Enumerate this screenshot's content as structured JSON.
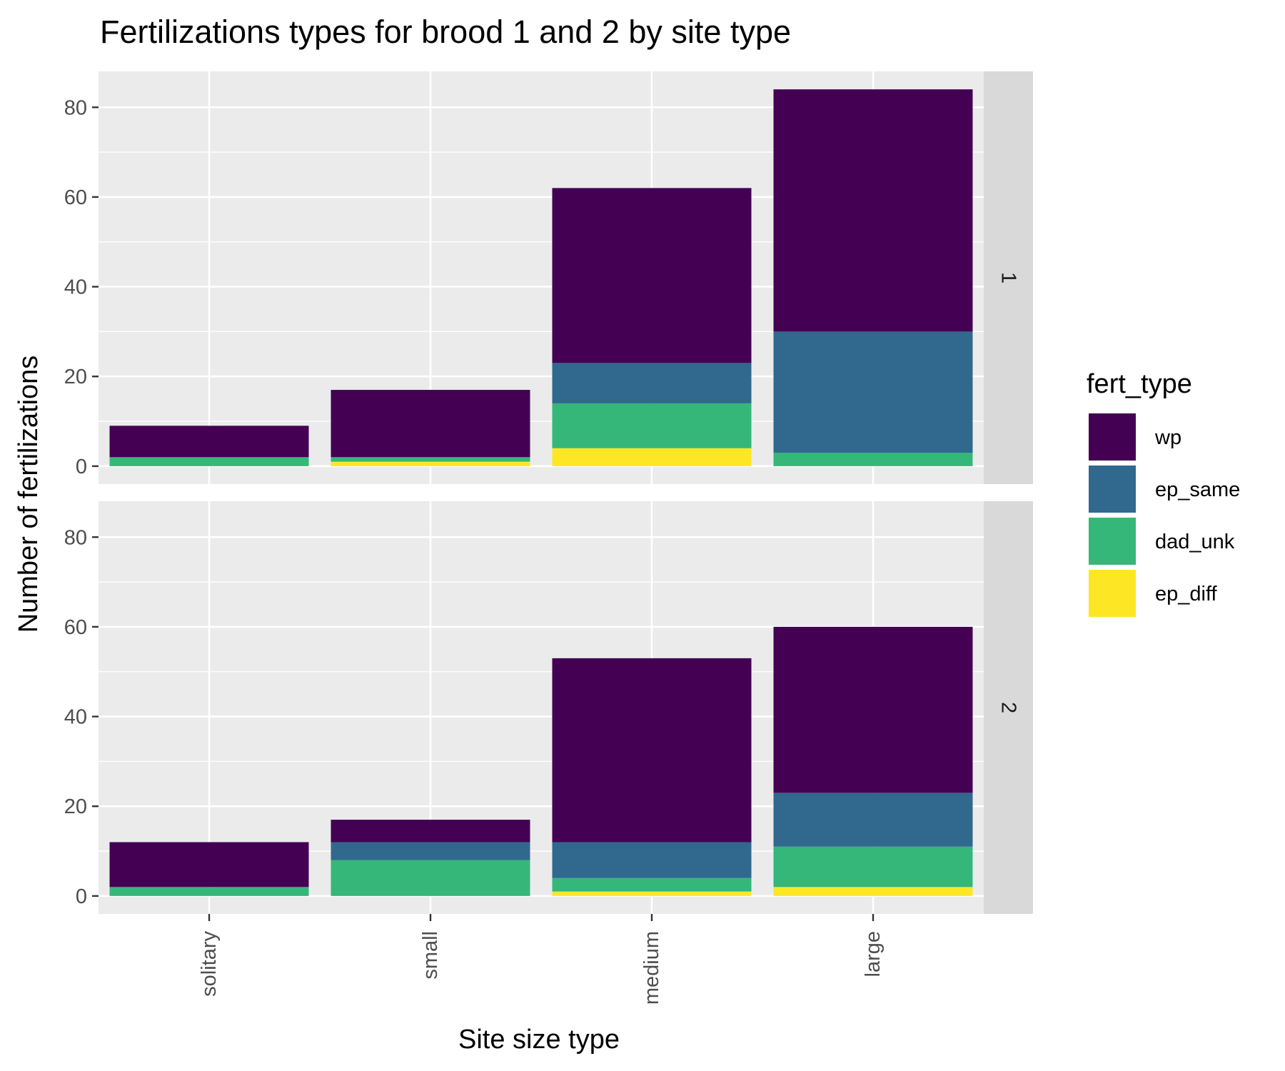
{
  "chart_data": {
    "type": "bar",
    "stacked": true,
    "faceted": true,
    "title": "Fertilizations types for brood 1 and 2 by site type",
    "xlabel": "Site size type",
    "ylabel": "Number of fertilizations",
    "categories": [
      "solitary",
      "small",
      "medium",
      "large"
    ],
    "ylim": [
      -4,
      88
    ],
    "yticks": [
      0,
      20,
      40,
      60,
      80
    ],
    "y_tick_labels": [
      "0",
      "20",
      "40",
      "60",
      "80"
    ],
    "grid": true,
    "legend": {
      "title": "fert_type",
      "position": "right",
      "entries": [
        "wp",
        "ep_same",
        "dad_unk",
        "ep_diff"
      ]
    },
    "stack_order_bottom_to_top": [
      "ep_diff",
      "dad_unk",
      "ep_same",
      "wp"
    ],
    "colors": {
      "wp": "#440154",
      "ep_same": "#31688e",
      "dad_unk": "#35b779",
      "ep_diff": "#fde725"
    },
    "facets": [
      {
        "label": "1",
        "series": [
          {
            "name": "wp",
            "values": [
              7,
              15,
              39,
              54
            ]
          },
          {
            "name": "ep_same",
            "values": [
              0,
              0,
              9,
              27
            ]
          },
          {
            "name": "dad_unk",
            "values": [
              2,
              1,
              10,
              3
            ]
          },
          {
            "name": "ep_diff",
            "values": [
              0,
              1,
              4,
              0
            ]
          }
        ]
      },
      {
        "label": "2",
        "series": [
          {
            "name": "wp",
            "values": [
              10,
              5,
              41,
              37
            ]
          },
          {
            "name": "ep_same",
            "values": [
              0,
              4,
              8,
              12
            ]
          },
          {
            "name": "dad_unk",
            "values": [
              2,
              8,
              3,
              9
            ]
          },
          {
            "name": "ep_diff",
            "values": [
              0,
              0,
              1,
              2
            ]
          }
        ]
      }
    ]
  }
}
